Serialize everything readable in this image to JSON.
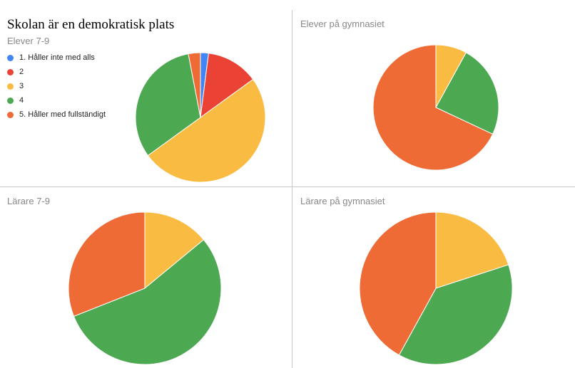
{
  "title": "Skolan är en demokratisk plats",
  "legend": [
    {
      "label": "1. Håller inte med alls",
      "color": "#4285F4"
    },
    {
      "label": "2",
      "color": "#EA4335"
    },
    {
      "label": "3",
      "color": "#F9BB42"
    },
    {
      "label": "4",
      "color": "#4CA851"
    },
    {
      "label": "5. Håller med fullständigt",
      "color": "#EF6B35"
    }
  ],
  "chart_data": [
    {
      "type": "pie",
      "title": "Elever 7-9",
      "categories": [
        "1. Håller inte med alls",
        "2",
        "3",
        "4",
        "5. Håller med fullständigt"
      ],
      "values": [
        2,
        13,
        50,
        32,
        3
      ],
      "colors": [
        "#4285F4",
        "#EA4335",
        "#F9BB42",
        "#4CA851",
        "#EF6B35"
      ]
    },
    {
      "type": "pie",
      "title": "Elever på gymnasiet",
      "categories": [
        "1. Håller inte med alls",
        "2",
        "3",
        "4",
        "5. Håller med fullständigt"
      ],
      "values": [
        0,
        0,
        8,
        24,
        68
      ],
      "colors": [
        "#4285F4",
        "#EA4335",
        "#F9BB42",
        "#4CA851",
        "#EF6B35"
      ]
    },
    {
      "type": "pie",
      "title": "Lärare 7-9",
      "categories": [
        "1. Håller inte med alls",
        "2",
        "3",
        "4",
        "5. Håller med fullständigt"
      ],
      "values": [
        0,
        0,
        14,
        55,
        31
      ],
      "colors": [
        "#4285F4",
        "#EA4335",
        "#F9BB42",
        "#4CA851",
        "#EF6B35"
      ]
    },
    {
      "type": "pie",
      "title": "Lärare på gymnasiet",
      "categories": [
        "1. Håller inte med alls",
        "2",
        "3",
        "4",
        "5. Håller med fullständigt"
      ],
      "values": [
        0,
        0,
        20,
        38,
        42
      ],
      "colors": [
        "#4285F4",
        "#EA4335",
        "#F9BB42",
        "#4CA851",
        "#EF6B35"
      ]
    }
  ]
}
